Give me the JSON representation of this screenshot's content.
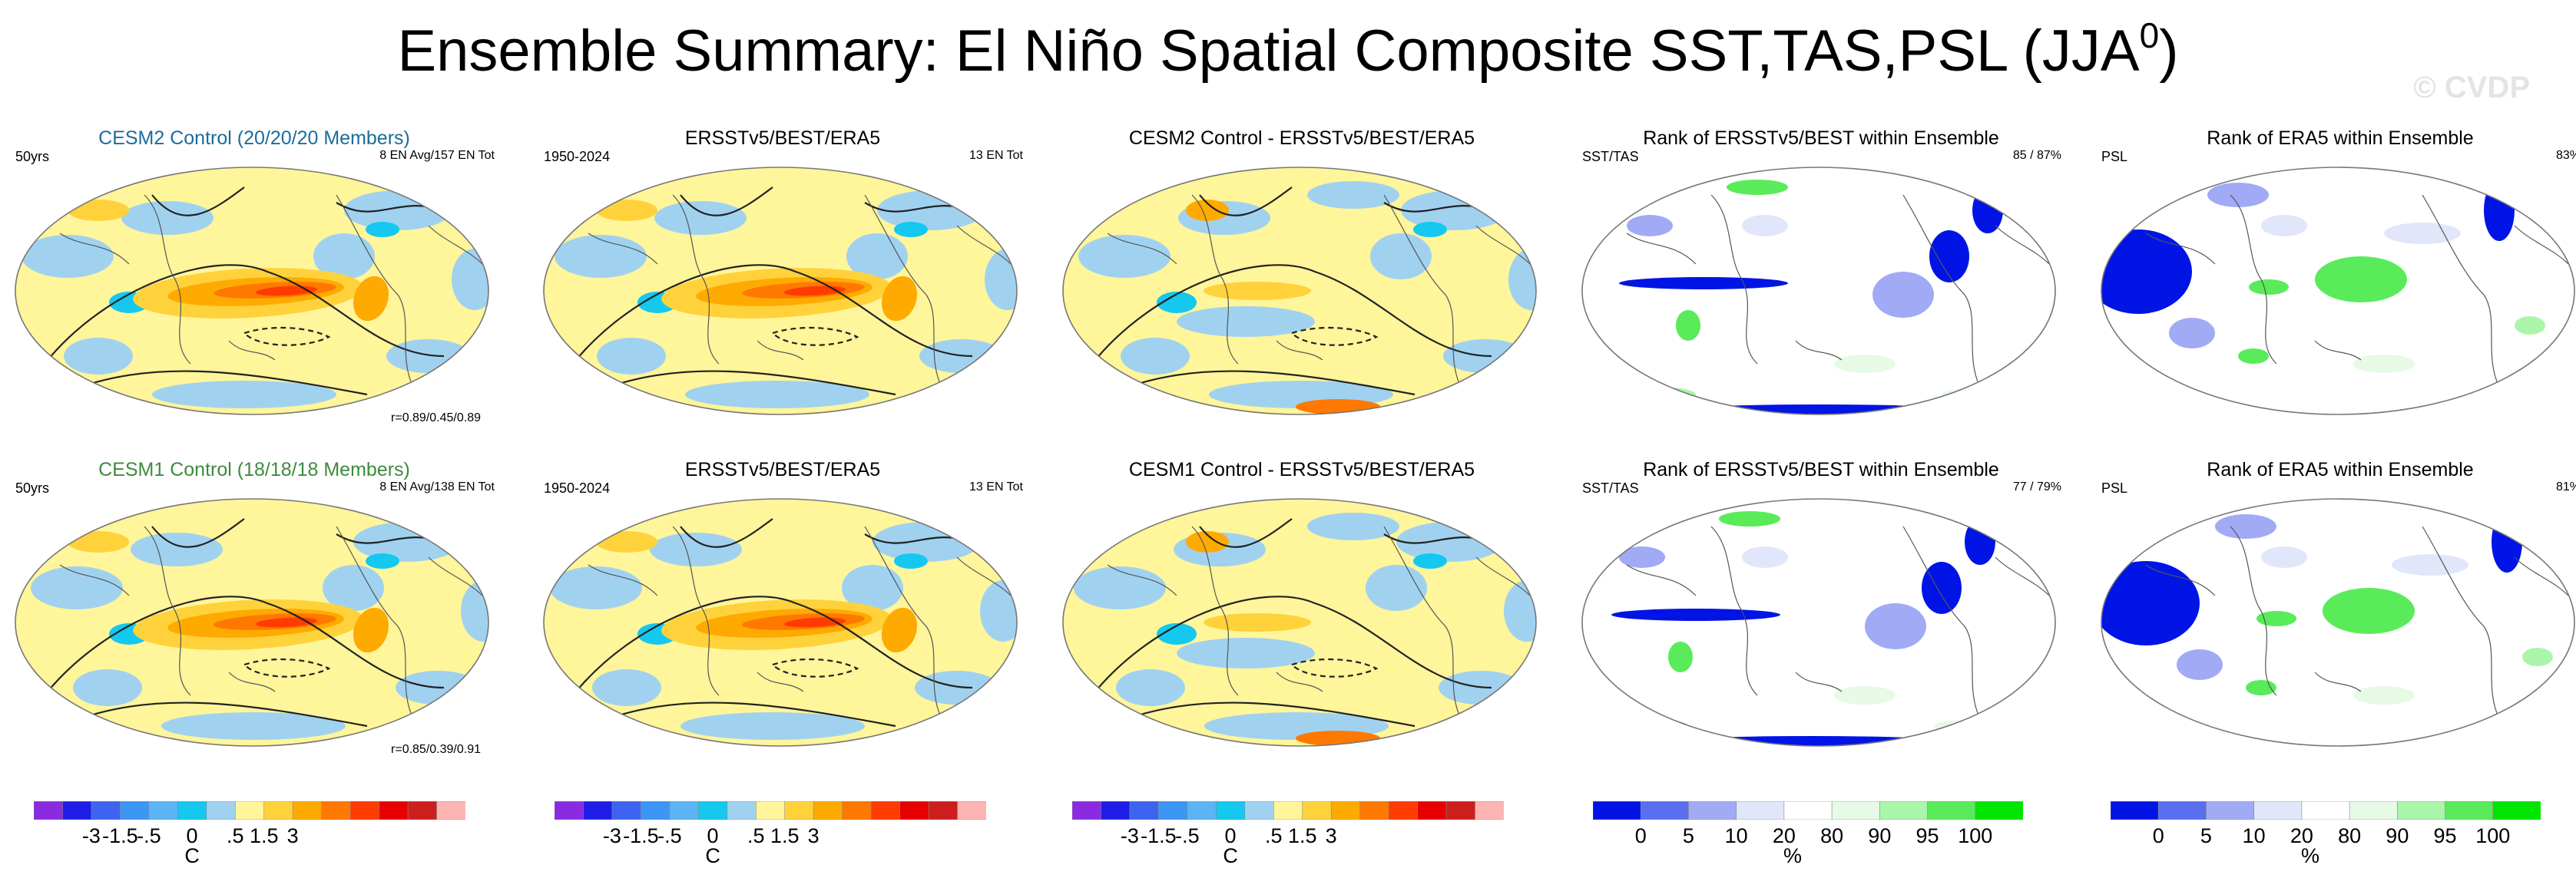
{
  "title": {
    "prefix": "Ensemble Summary: El Niño Spatial Composite SST,TAS,PSL (JJA",
    "superscript": "0",
    "suffix": ")"
  },
  "watermark": "© CVDP",
  "colors": {
    "diverging": [
      "#8a2be2",
      "#1e1ee6",
      "#3c64f0",
      "#3c96f5",
      "#5ab4f5",
      "#14c8f0",
      "#a0d2f0",
      "#fff59b",
      "#ffd23c",
      "#ffaa00",
      "#ff7800",
      "#ff3c00",
      "#e60000",
      "#cd1e1e",
      "#ffb4b4"
    ],
    "rank": [
      "#0014e6",
      "#5a6ef0",
      "#a0aaf5",
      "#e1e6fa",
      "#ffffff",
      "#e6fae6",
      "#aaf5aa",
      "#5aeb5a",
      "#00e600"
    ],
    "land": "#f4f4d8"
  },
  "rows": [
    {
      "panels": [
        {
          "kind": "model",
          "title": "CESM2 Control (20/20/20 Members)",
          "title_color": "blue",
          "left": "50yrs",
          "right": "8 EN Avg/157 EN Tot",
          "bottom": "r=0.89/0.45/0.89"
        },
        {
          "kind": "obs",
          "title": "ERSSTv5/BEST/ERA5",
          "left": "1950-2024",
          "right": "13 EN Tot"
        },
        {
          "kind": "diff",
          "title": "CESM2 Control - ERSSTv5/BEST/ERA5"
        },
        {
          "kind": "rank1",
          "title": "Rank of ERSSTv5/BEST within Ensemble",
          "left": "SST/TAS",
          "right": "85 /  87%"
        },
        {
          "kind": "rank2",
          "title": "Rank of ERA5 within Ensemble",
          "left": "PSL",
          "right": "83%"
        }
      ]
    },
    {
      "panels": [
        {
          "kind": "model",
          "title": "CESM1 Control (18/18/18 Members)",
          "title_color": "green",
          "left": "50yrs",
          "right": "8 EN Avg/138 EN Tot",
          "bottom": "r=0.85/0.39/0.91"
        },
        {
          "kind": "obs",
          "title": "ERSSTv5/BEST/ERA5",
          "left": "1950-2024",
          "right": "13 EN Tot"
        },
        {
          "kind": "diff",
          "title": "CESM1 Control - ERSSTv5/BEST/ERA5"
        },
        {
          "kind": "rank1",
          "title": "Rank of ERSSTv5/BEST within Ensemble",
          "left": "SST/TAS",
          "right": "77 /  79%"
        },
        {
          "kind": "rank2",
          "title": "Rank of ERA5 within Ensemble",
          "left": "PSL",
          "right": "81%"
        }
      ]
    }
  ],
  "chart_data": [
    {
      "type": "heatmap",
      "title": "Ensemble Summary: El Niño Spatial Composite SST,TAS,PSL (JJA0)",
      "projection": "Robinson (global, Pacific-centered)",
      "colorbar_temperature": {
        "unit": "C",
        "tick_labels": [
          "-3",
          "-1.5",
          "-.5",
          "0",
          ".5",
          "1.5",
          "3"
        ],
        "n_colors": 15
      },
      "colorbar_rank": {
        "unit": "%",
        "tick_labels": [
          "0",
          "5",
          "10",
          "20",
          "80",
          "90",
          "95",
          "100"
        ],
        "n_colors": 9
      },
      "panels": [
        {
          "name": "CESM2 Control (20/20/20 Members)",
          "years": "50yrs",
          "composite": "8 EN Avg/157 EN Tot",
          "pattern_correlations": [
            0.89,
            0.45,
            0.89
          ]
        },
        {
          "name": "ERSSTv5/BEST/ERA5",
          "period": "1950-2024",
          "events": "13 EN Tot"
        },
        {
          "name": "CESM2 Control - ERSSTv5/BEST/ERA5"
        },
        {
          "name": "Rank of ERSSTv5/BEST within Ensemble",
          "fields": "SST/TAS",
          "percent_within": [
            85,
            87
          ]
        },
        {
          "name": "Rank of ERA5 within Ensemble",
          "fields": "PSL",
          "percent_within": [
            83
          ]
        },
        {
          "name": "CESM1 Control (18/18/18 Members)",
          "years": "50yrs",
          "composite": "8 EN Avg/138 EN Tot",
          "pattern_correlations": [
            0.85,
            0.39,
            0.91
          ]
        },
        {
          "name": "ERSSTv5/BEST/ERA5",
          "period": "1950-2024",
          "events": "13 EN Tot"
        },
        {
          "name": "CESM1 Control - ERSSTv5/BEST/ERA5"
        },
        {
          "name": "Rank of ERSSTv5/BEST within Ensemble",
          "fields": "SST/TAS",
          "percent_within": [
            77,
            79
          ]
        },
        {
          "name": "Rank of ERA5 within Ensemble",
          "fields": "PSL",
          "percent_within": [
            81
          ]
        }
      ]
    }
  ],
  "colorbars": [
    {
      "kind": "temp",
      "unit": "C",
      "ticks": [
        {
          "label": "-3",
          "v": 2
        },
        {
          "label": "-1.5",
          "v": 3
        },
        {
          "label": "-.5",
          "v": 4
        },
        {
          "label": "0",
          "v": 5.5
        },
        {
          "label": ".5",
          "v": 7
        },
        {
          "label": "1.5",
          "v": 8
        },
        {
          "label": "3",
          "v": 9
        }
      ]
    },
    {
      "kind": "temp",
      "unit": "C",
      "ticks": [
        {
          "label": "-3",
          "v": 2
        },
        {
          "label": "-1.5",
          "v": 3
        },
        {
          "label": "-.5",
          "v": 4
        },
        {
          "label": "0",
          "v": 5.5
        },
        {
          "label": ".5",
          "v": 7
        },
        {
          "label": "1.5",
          "v": 8
        },
        {
          "label": "3",
          "v": 9
        }
      ]
    },
    {
      "kind": "temp",
      "unit": "C",
      "ticks": [
        {
          "label": "-3",
          "v": 2
        },
        {
          "label": "-1.5",
          "v": 3
        },
        {
          "label": "-.5",
          "v": 4
        },
        {
          "label": "0",
          "v": 5.5
        },
        {
          "label": ".5",
          "v": 7
        },
        {
          "label": "1.5",
          "v": 8
        },
        {
          "label": "3",
          "v": 9
        }
      ]
    },
    {
      "kind": "rank",
      "unit": "%",
      "ticks": [
        {
          "label": "0",
          "v": 1
        },
        {
          "label": "5",
          "v": 2
        },
        {
          "label": "10",
          "v": 3
        },
        {
          "label": "20",
          "v": 4
        },
        {
          "label": "80",
          "v": 5
        },
        {
          "label": "90",
          "v": 6
        },
        {
          "label": "95",
          "v": 7
        },
        {
          "label": "100",
          "v": 8
        }
      ]
    },
    {
      "kind": "rank",
      "unit": "%",
      "ticks": [
        {
          "label": "0",
          "v": 1
        },
        {
          "label": "5",
          "v": 2
        },
        {
          "label": "10",
          "v": 3
        },
        {
          "label": "20",
          "v": 4
        },
        {
          "label": "80",
          "v": 5
        },
        {
          "label": "90",
          "v": 6
        },
        {
          "label": "95",
          "v": 7
        },
        {
          "label": "100",
          "v": 8
        }
      ]
    }
  ]
}
